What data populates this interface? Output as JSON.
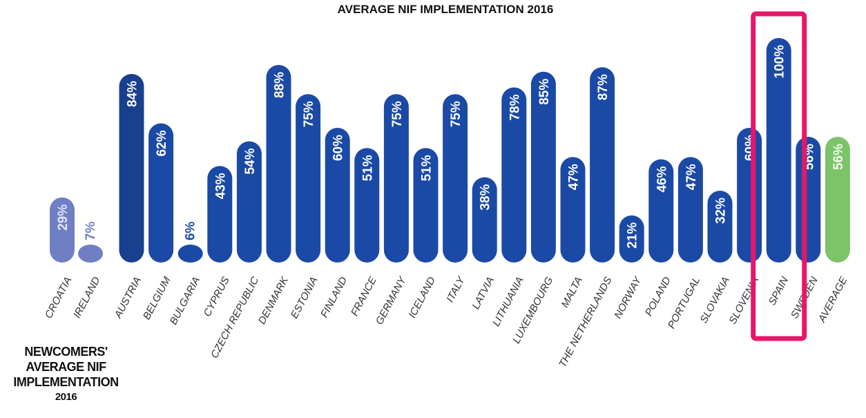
{
  "chart_data": {
    "type": "bar",
    "title": "AVERAGE NIF IMPLEMENTATION 2016",
    "categories": [
      "CROATIA",
      "IRELAND",
      "AUSTRIA",
      "BELGIUM",
      "BULGARIA",
      "CYPRUS",
      "CZECH REPUBLIC",
      "DENMARK",
      "ESTONIA",
      "FINLAND",
      "FRANCE",
      "GERMANY",
      "ICELAND",
      "ITALY",
      "LATVIA",
      "LITHUANIA",
      "LUXEMBOURG",
      "MALTA",
      "THE NETHERLANDS",
      "NORWAY",
      "POLAND",
      "PORTUGAL",
      "SLOVAKIA",
      "SLOVENIA",
      "SPAIN",
      "SWEDEN",
      "AVERAGE"
    ],
    "values": [
      29,
      7,
      84,
      62,
      6,
      43,
      54,
      88,
      75,
      60,
      51,
      75,
      51,
      75,
      38,
      78,
      85,
      47,
      87,
      21,
      46,
      47,
      32,
      60,
      100,
      56,
      56
    ],
    "labels": [
      "29%",
      "7%",
      "84%",
      "62%",
      "6%",
      "43%",
      "54%",
      "88%",
      "75%",
      "60%",
      "51%",
      "75%",
      "51%",
      "75%",
      "38%",
      "78%",
      "85%",
      "47%",
      "87%",
      "21%",
      "46%",
      "47%",
      "32%",
      "60%",
      "100%",
      "56%",
      "56%"
    ],
    "groups": [
      "newcomer",
      "newcomer",
      "member",
      "member",
      "member",
      "member",
      "member",
      "member",
      "member",
      "member",
      "member",
      "member",
      "member",
      "member",
      "member",
      "member",
      "member",
      "member",
      "member",
      "member",
      "member",
      "member",
      "member",
      "member",
      "member",
      "member",
      "average"
    ],
    "ylim": [
      0,
      100
    ],
    "grid": false,
    "xlabel": "",
    "ylabel": "",
    "highlight": "SPAIN",
    "colors": {
      "newcomer": "#6f7fc4",
      "member": "#1b4aa6",
      "austria": "#18408f",
      "average": "#7cc36a",
      "newcomer_label": "#e2e6f6",
      "member_label": "#ffffff",
      "average_label": "#f2fbef",
      "highlight_box": "#e8166a"
    }
  },
  "side_note": {
    "line1": "NEWCOMERS'",
    "line2": "AVERAGE NIF",
    "line3": "IMPLEMENTATION",
    "line4": "2016"
  }
}
